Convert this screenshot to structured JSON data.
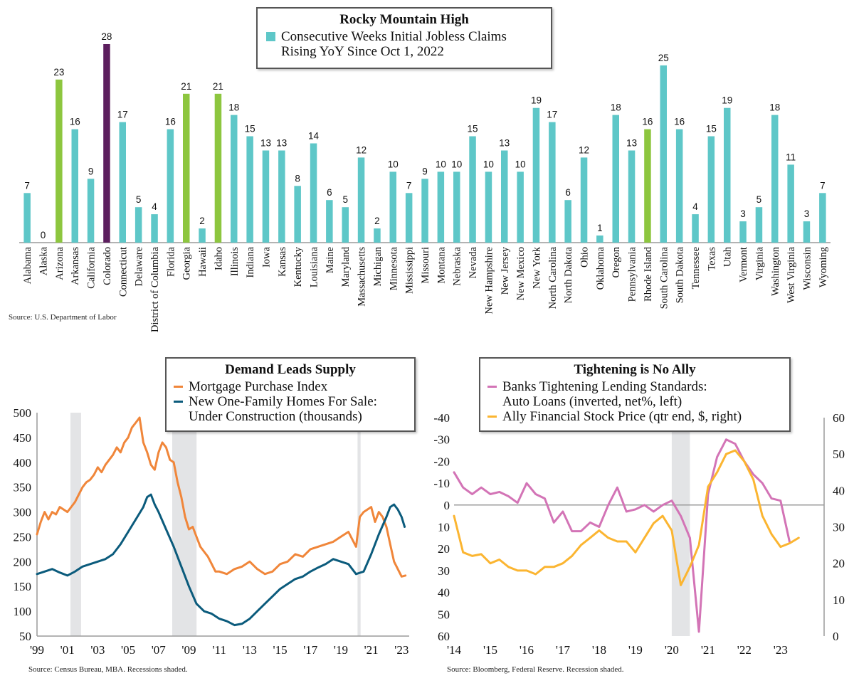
{
  "colors": {
    "teal": "#5ec7c8",
    "green": "#8dc63f",
    "purple": "#5c1e5e",
    "orange": "#f0863a",
    "navy": "#0b5b7c",
    "pink": "#d374b6",
    "gold": "#fbb531",
    "recession": "#e3e4e6",
    "axis": "#9a9a9a"
  },
  "top_panel": {
    "legend_title": "Rocky Mountain High",
    "legend_line1": "Consecutive Weeks Initial Jobless Claims",
    "legend_line2": "Rising YoY Since Oct 1, 2022",
    "source": "Source: U.S. Department of Labor"
  },
  "left_panel": {
    "legend_title": "Demand Leads Supply",
    "series1": "Mortgage Purchase Index",
    "series2_line1": "New One-Family Homes For Sale:",
    "series2_line2": "Under Construction (thousands)",
    "source": "Source: Census Bureau, MBA. Recessions shaded."
  },
  "right_panel": {
    "legend_title": "Tightening is No Ally",
    "series1_line1": "Banks Tightening Lending Standards:",
    "series1_line2": "Auto Loans (inverted, net%, left)",
    "series2": "Ally Financial Stock Price (qtr end, $, right)",
    "source": "Source: Bloomberg, Federal Reserve. Recession shaded."
  },
  "chart_data": [
    {
      "type": "bar",
      "title": "Rocky Mountain High",
      "series_name": "Consecutive Weeks Initial Jobless Claims Rising YoY Since Oct 1, 2022",
      "categories": [
        "Alabama",
        "Alaska",
        "Arizona",
        "Arkansas",
        "California",
        "Colorado",
        "Connecticut",
        "Delaware",
        "District of Columbia",
        "Florida",
        "Georgia",
        "Hawaii",
        "Idaho",
        "Illinois",
        "Indiana",
        "Iowa",
        "Kansas",
        "Kentucky",
        "Louisiana",
        "Maine",
        "Maryland",
        "Massachusetts",
        "Michigan",
        "Minnesota",
        "Mississippi",
        "Missouri",
        "Montana",
        "Nebraska",
        "Nevada",
        "New Hampshire",
        "New Jersey",
        "New Mexico",
        "New York",
        "North Carolina",
        "North Dakota",
        "Ohio",
        "Oklahoma",
        "Oregon",
        "Pennsylvania",
        "Rhode Island",
        "South Carolina",
        "South Dakota",
        "Tennessee",
        "Texas",
        "Utah",
        "Vermont",
        "Virginia",
        "Washington",
        "West Virginia",
        "Wisconsin",
        "Wyoming"
      ],
      "values": [
        7,
        0,
        23,
        16,
        9,
        28,
        17,
        5,
        4,
        16,
        21,
        2,
        21,
        18,
        15,
        13,
        13,
        8,
        14,
        6,
        5,
        12,
        2,
        10,
        7,
        9,
        10,
        10,
        15,
        10,
        13,
        10,
        19,
        17,
        6,
        12,
        1,
        18,
        13,
        16,
        25,
        16,
        4,
        15,
        19,
        3,
        5,
        18,
        11,
        3,
        7
      ],
      "highlight_green": [
        "Arizona",
        "Georgia",
        "Idaho",
        "Rhode Island"
      ],
      "highlight_purple": [
        "Colorado"
      ],
      "ylim": [
        0,
        28
      ]
    },
    {
      "type": "line",
      "title": "Demand Leads Supply",
      "x_ticks": [
        "'99",
        "'01",
        "'03",
        "'05",
        "'07",
        "'09",
        "'11",
        "'13",
        "'15",
        "'17",
        "'19",
        "'21",
        "'23"
      ],
      "y_ticks": [
        50,
        100,
        150,
        200,
        250,
        300,
        350,
        400,
        450,
        500
      ],
      "xlim": [
        1999,
        2023.5
      ],
      "ylim": [
        50,
        500
      ],
      "recessions": [
        [
          2001.2,
          2001.9
        ],
        [
          2007.9,
          2009.5
        ],
        [
          2020.1,
          2020.3
        ]
      ],
      "series": [
        {
          "name": "Mortgage Purchase Index",
          "x": [
            1999,
            1999.25,
            1999.5,
            1999.75,
            2000,
            2000.25,
            2000.5,
            2000.75,
            2001,
            2001.25,
            2001.5,
            2001.75,
            2002,
            2002.25,
            2002.5,
            2002.75,
            2003,
            2003.25,
            2003.5,
            2003.75,
            2004,
            2004.25,
            2004.5,
            2004.75,
            2005,
            2005.25,
            2005.5,
            2005.75,
            2006,
            2006.25,
            2006.5,
            2006.75,
            2007,
            2007.25,
            2007.5,
            2007.75,
            2008,
            2008.25,
            2008.5,
            2008.75,
            2009,
            2009.25,
            2009.5,
            2009.75,
            2010,
            2010.25,
            2010.5,
            2010.75,
            2011,
            2011.5,
            2012,
            2012.5,
            2013,
            2013.5,
            2014,
            2014.5,
            2015,
            2015.5,
            2016,
            2016.5,
            2017,
            2017.5,
            2018,
            2018.5,
            2019,
            2019.5,
            2020,
            2020.25,
            2020.5,
            2020.75,
            2021,
            2021.25,
            2021.5,
            2021.75,
            2022,
            2022.25,
            2022.5,
            2022.75,
            2023,
            2023.25
          ],
          "values": [
            255,
            280,
            300,
            285,
            300,
            295,
            310,
            305,
            300,
            310,
            320,
            335,
            350,
            360,
            365,
            375,
            390,
            380,
            395,
            405,
            415,
            430,
            420,
            440,
            450,
            470,
            480,
            490,
            440,
            420,
            395,
            385,
            420,
            440,
            430,
            405,
            400,
            360,
            330,
            290,
            265,
            270,
            250,
            230,
            220,
            210,
            195,
            180,
            180,
            175,
            185,
            190,
            200,
            185,
            175,
            180,
            195,
            200,
            215,
            210,
            225,
            230,
            235,
            240,
            250,
            260,
            230,
            290,
            300,
            305,
            310,
            280,
            300,
            290,
            270,
            235,
            200,
            185,
            170,
            172
          ],
          "color": "#f0863a"
        },
        {
          "name": "New One-Family Homes For Sale: Under Construction (thousands)",
          "x": [
            1999,
            1999.5,
            2000,
            2000.5,
            2001,
            2001.5,
            2002,
            2002.5,
            2003,
            2003.5,
            2004,
            2004.5,
            2005,
            2005.5,
            2006,
            2006.25,
            2006.5,
            2006.75,
            2007,
            2007.5,
            2008,
            2008.5,
            2009,
            2009.5,
            2010,
            2010.5,
            2011,
            2011.5,
            2012,
            2012.5,
            2013,
            2013.5,
            2014,
            2014.5,
            2015,
            2015.5,
            2016,
            2016.5,
            2017,
            2017.5,
            2018,
            2018.5,
            2019,
            2019.5,
            2020,
            2020.5,
            2021,
            2021.5,
            2022,
            2022.25,
            2022.5,
            2022.75,
            2023,
            2023.2
          ],
          "values": [
            175,
            180,
            185,
            178,
            172,
            180,
            190,
            195,
            200,
            205,
            215,
            235,
            260,
            285,
            310,
            330,
            335,
            315,
            300,
            265,
            230,
            190,
            150,
            115,
            100,
            95,
            85,
            80,
            72,
            75,
            85,
            100,
            115,
            130,
            145,
            155,
            165,
            170,
            180,
            188,
            195,
            205,
            200,
            195,
            175,
            180,
            215,
            255,
            290,
            310,
            315,
            305,
            290,
            270
          ],
          "color": "#0b5b7c"
        }
      ]
    },
    {
      "type": "line",
      "title": "Tightening is No Ally",
      "x_ticks": [
        "'14",
        "'15",
        "'16",
        "'17",
        "'18",
        "'19",
        "'20",
        "'21",
        "'22",
        "'23"
      ],
      "y_ticks_left": [
        -40,
        -30,
        -20,
        -10,
        0,
        10,
        20,
        30,
        40,
        50,
        60
      ],
      "y_ticks_right": [
        0,
        10,
        20,
        30,
        40,
        50,
        60
      ],
      "xlim": [
        2014,
        2024.2
      ],
      "ylim_left": [
        -40,
        60
      ],
      "ylim_right": [
        0,
        60
      ],
      "left_inverted": true,
      "recessions": [
        [
          2020.0,
          2020.5
        ]
      ],
      "series": [
        {
          "name": "Banks Tightening Lending Standards: Auto Loans (inverted, net%, left)",
          "axis": "left",
          "x": [
            2014,
            2014.25,
            2014.5,
            2014.75,
            2015,
            2015.25,
            2015.5,
            2015.75,
            2016,
            2016.25,
            2016.5,
            2016.75,
            2017,
            2017.25,
            2017.5,
            2017.75,
            2018,
            2018.25,
            2018.5,
            2018.75,
            2019,
            2019.25,
            2019.5,
            2019.75,
            2020,
            2020.25,
            2020.5,
            2020.75,
            2021,
            2021.25,
            2021.5,
            2021.75,
            2022,
            2022.25,
            2022.5,
            2022.75,
            2023,
            2023.25
          ],
          "values": [
            -15,
            -8,
            -5,
            -8,
            -5,
            -6,
            -4,
            -1,
            -10,
            -5,
            -3,
            8,
            3,
            12,
            12,
            8,
            10,
            0,
            -8,
            3,
            2,
            0,
            3,
            0,
            -2,
            5,
            15,
            58,
            -5,
            -22,
            -30,
            -28,
            -20,
            -14,
            -10,
            -3,
            -2,
            17
          ],
          "color": "#d374b6"
        },
        {
          "name": "Ally Financial Stock Price (qtr end, $, right)",
          "axis": "right",
          "x": [
            2014,
            2014.25,
            2014.5,
            2014.75,
            2015,
            2015.25,
            2015.5,
            2015.75,
            2016,
            2016.25,
            2016.5,
            2016.75,
            2017,
            2017.25,
            2017.5,
            2017.75,
            2018,
            2018.25,
            2018.5,
            2018.75,
            2019,
            2019.25,
            2019.5,
            2019.75,
            2020,
            2020.25,
            2020.5,
            2020.75,
            2021,
            2021.25,
            2021.5,
            2021.75,
            2022,
            2022.25,
            2022.5,
            2022.75,
            2023,
            2023.25,
            2023.5
          ],
          "values": [
            33,
            23,
            22,
            22.5,
            20,
            21,
            19,
            18,
            18,
            17,
            19,
            19,
            20,
            22,
            25,
            27,
            29,
            27,
            26,
            26,
            23,
            27,
            31,
            33,
            29,
            14,
            19,
            25,
            41,
            45,
            50,
            51,
            48,
            43,
            33,
            28,
            24.5,
            25.5,
            27
          ],
          "color": "#fbb531"
        }
      ]
    }
  ]
}
